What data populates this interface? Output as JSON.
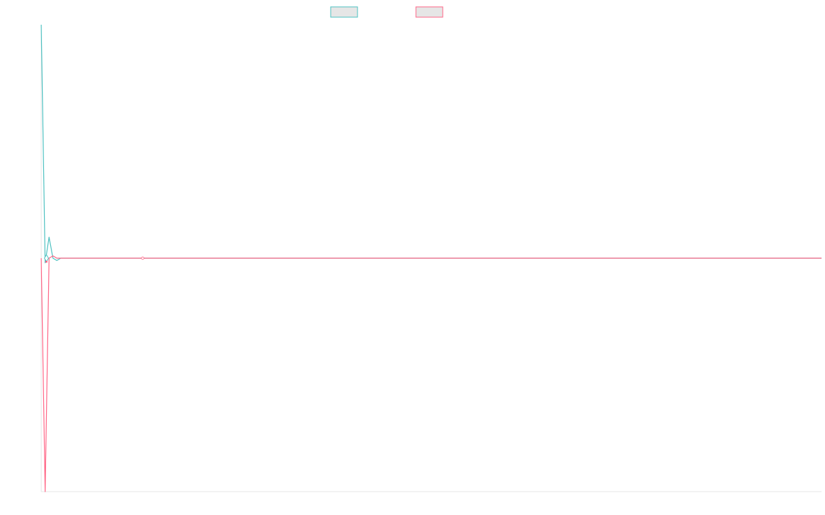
{
  "chart_data": {
    "type": "line",
    "title": "",
    "xlabel": "",
    "ylabel": "",
    "grid": false,
    "legend_position": "top-center",
    "xlim": [
      0,
      200
    ],
    "ylim": [
      -1,
      1
    ],
    "x": [
      0,
      1,
      2,
      3,
      4,
      5,
      10,
      20,
      26,
      50,
      100,
      150,
      200
    ],
    "series": [
      {
        "name": "",
        "color": "#4bc0c0",
        "fill": "#e6e6e6",
        "values": [
          1.0,
          -0.02,
          0.09,
          0.0,
          -0.01,
          0.0,
          0.0,
          0.0,
          0.0,
          0.0,
          0.0,
          0.0,
          0.0
        ]
      },
      {
        "name": "",
        "color": "#ff6384",
        "fill": "#e6e6e6",
        "values": [
          0.0,
          -1.0,
          0.0,
          0.01,
          0.0,
          0.0,
          0.0,
          0.0,
          0.0,
          0.0,
          0.0,
          0.0,
          0.0
        ]
      }
    ]
  }
}
